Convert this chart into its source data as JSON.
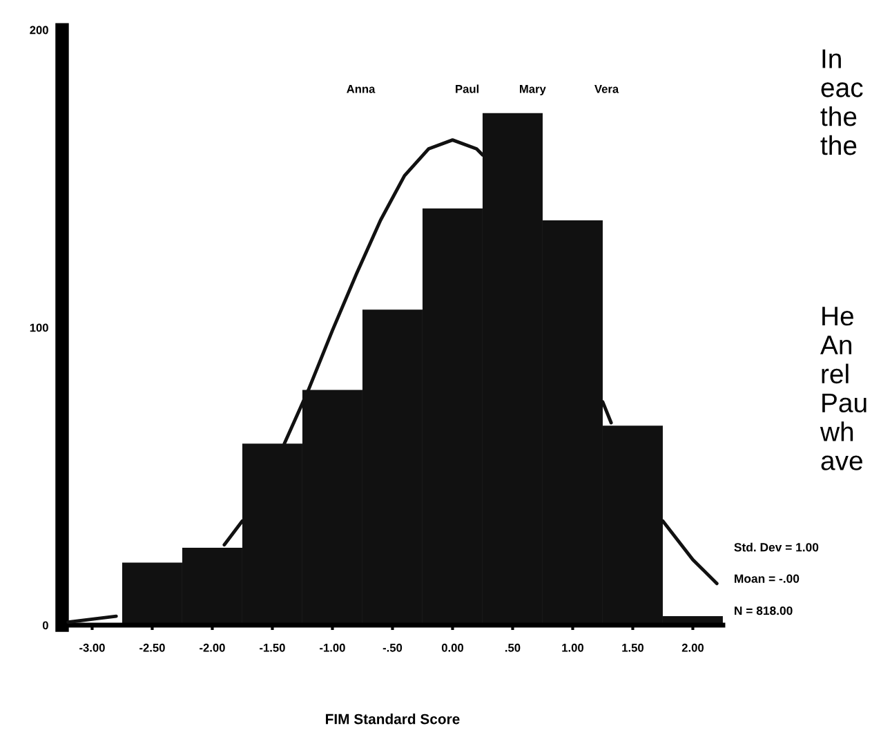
{
  "chart_data": {
    "type": "histogram",
    "xlabel": "FIM Standard Score",
    "bins": [
      -2.75,
      -2.25,
      -1.75,
      -1.25,
      -0.75,
      -0.25,
      0.25,
      0.75,
      1.25,
      1.75,
      2.25
    ],
    "values": [
      21,
      26,
      61,
      79,
      106,
      140,
      172,
      136,
      67,
      3
    ],
    "color": "#111111",
    "series": [
      {
        "type": "line",
        "color": "#111111",
        "x": [
          -3.2,
          -3.0,
          -2.8,
          -2.6,
          -1.9,
          -1.75,
          -1.6,
          -1.4,
          -1.2,
          -1.0,
          -0.8,
          -0.6,
          -0.4,
          -0.2,
          0.0,
          0.2,
          0.25,
          0.6,
          1.25,
          1.32,
          1.5,
          1.75,
          2.0,
          2.2
        ],
        "values": [
          1,
          2,
          3,
          null,
          27,
          35,
          null,
          61,
          79,
          99,
          118,
          136,
          151,
          160,
          163,
          160,
          158,
          null,
          75,
          68,
          null,
          35,
          22,
          14
        ]
      }
    ],
    "xlim": [
      -3.25,
      2.25
    ],
    "ylim": [
      0,
      200
    ],
    "xticks": [
      {
        "value": -3,
        "label": "-3.00"
      },
      {
        "value": -2.5,
        "label": "-2.50"
      },
      {
        "value": -2,
        "label": "-2.00"
      },
      {
        "value": -1.5,
        "label": "-1.50"
      },
      {
        "value": -1,
        "label": "-1.00"
      },
      {
        "value": -0.5,
        "label": "-.50"
      },
      {
        "value": 0,
        "label": "0.00"
      },
      {
        "value": 0.5,
        "label": ".50"
      },
      {
        "value": 1,
        "label": "1.00"
      },
      {
        "value": 1.5,
        "label": "1.50"
      },
      {
        "value": 2,
        "label": "2.00"
      }
    ],
    "yticks": [
      0,
      100,
      200
    ],
    "grid": false,
    "legend": false,
    "annotations": [
      "Anna",
      "Paul",
      "Mary",
      "Vera",
      "In\neac\nthe\nthe",
      "He\nAn\nrel\nPau\nwh\nave",
      "Std. Dev = 1.00",
      "Moan = -.00",
      "N = 818.00"
    ]
  }
}
